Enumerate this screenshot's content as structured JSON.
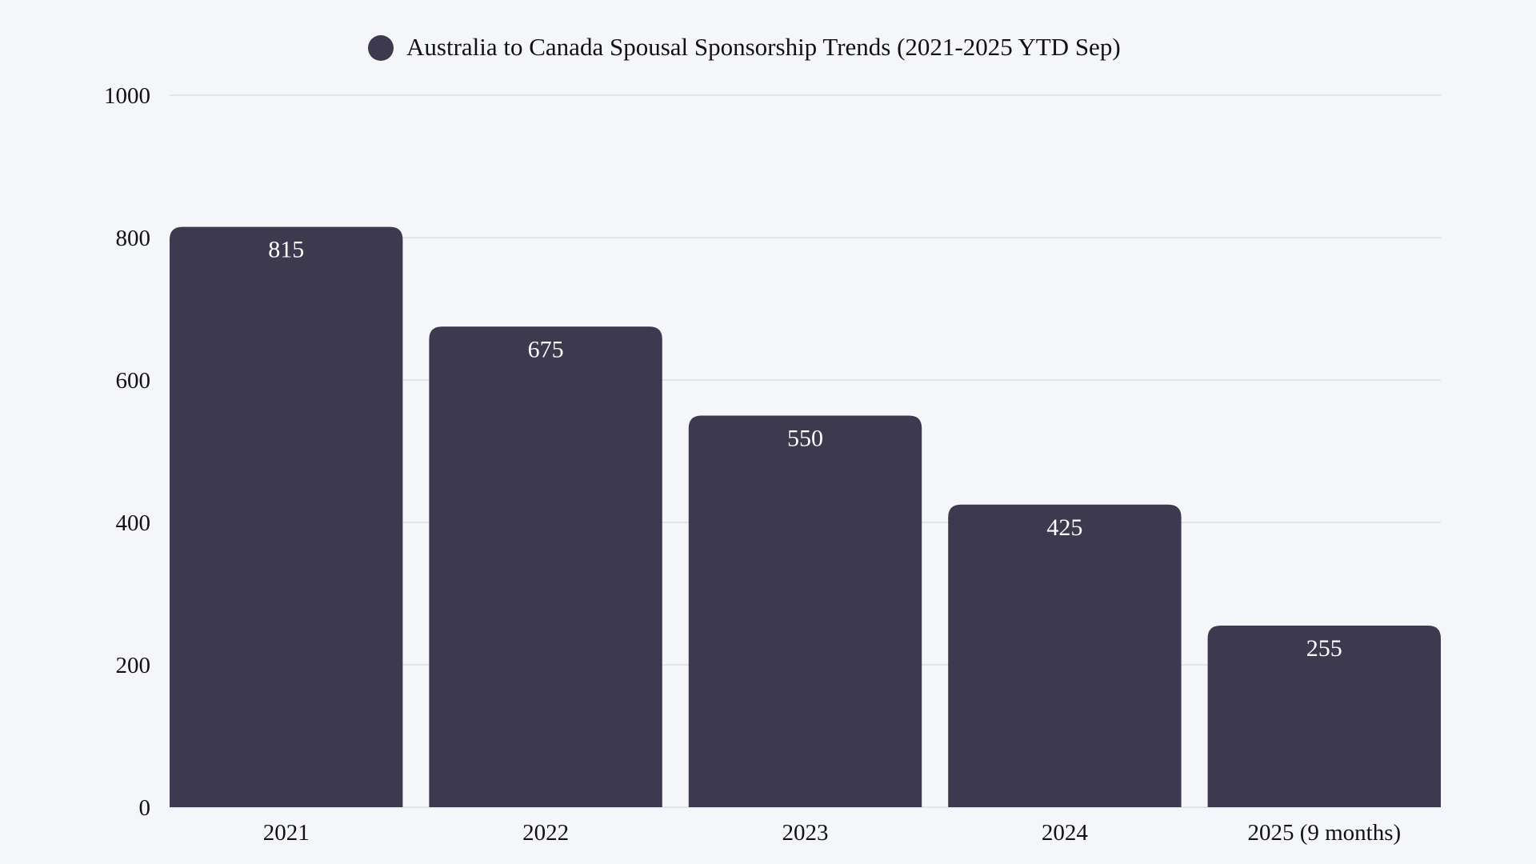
{
  "chart_data": {
    "type": "bar",
    "legend": {
      "label": "Australia to Canada Spousal Sponsorship Trends (2021-2025 YTD Sep)",
      "placement": "top"
    },
    "categories": [
      "2021",
      "2022",
      "2023",
      "2024",
      "2025 (9 months)"
    ],
    "series": [
      {
        "name": "Australia to Canada Spousal Sponsorship Trends (2021-2025 YTD Sep)",
        "values": [
          815,
          675,
          550,
          425,
          255
        ],
        "color": "#3d3a50"
      }
    ],
    "data_labels": [
      "815",
      "675",
      "550",
      "425",
      "255"
    ],
    "yticks": [
      "0",
      "200",
      "400",
      "600",
      "800",
      "1000"
    ],
    "ylim": [
      0,
      1000
    ],
    "grid": true,
    "background": "#f5f6f9"
  }
}
